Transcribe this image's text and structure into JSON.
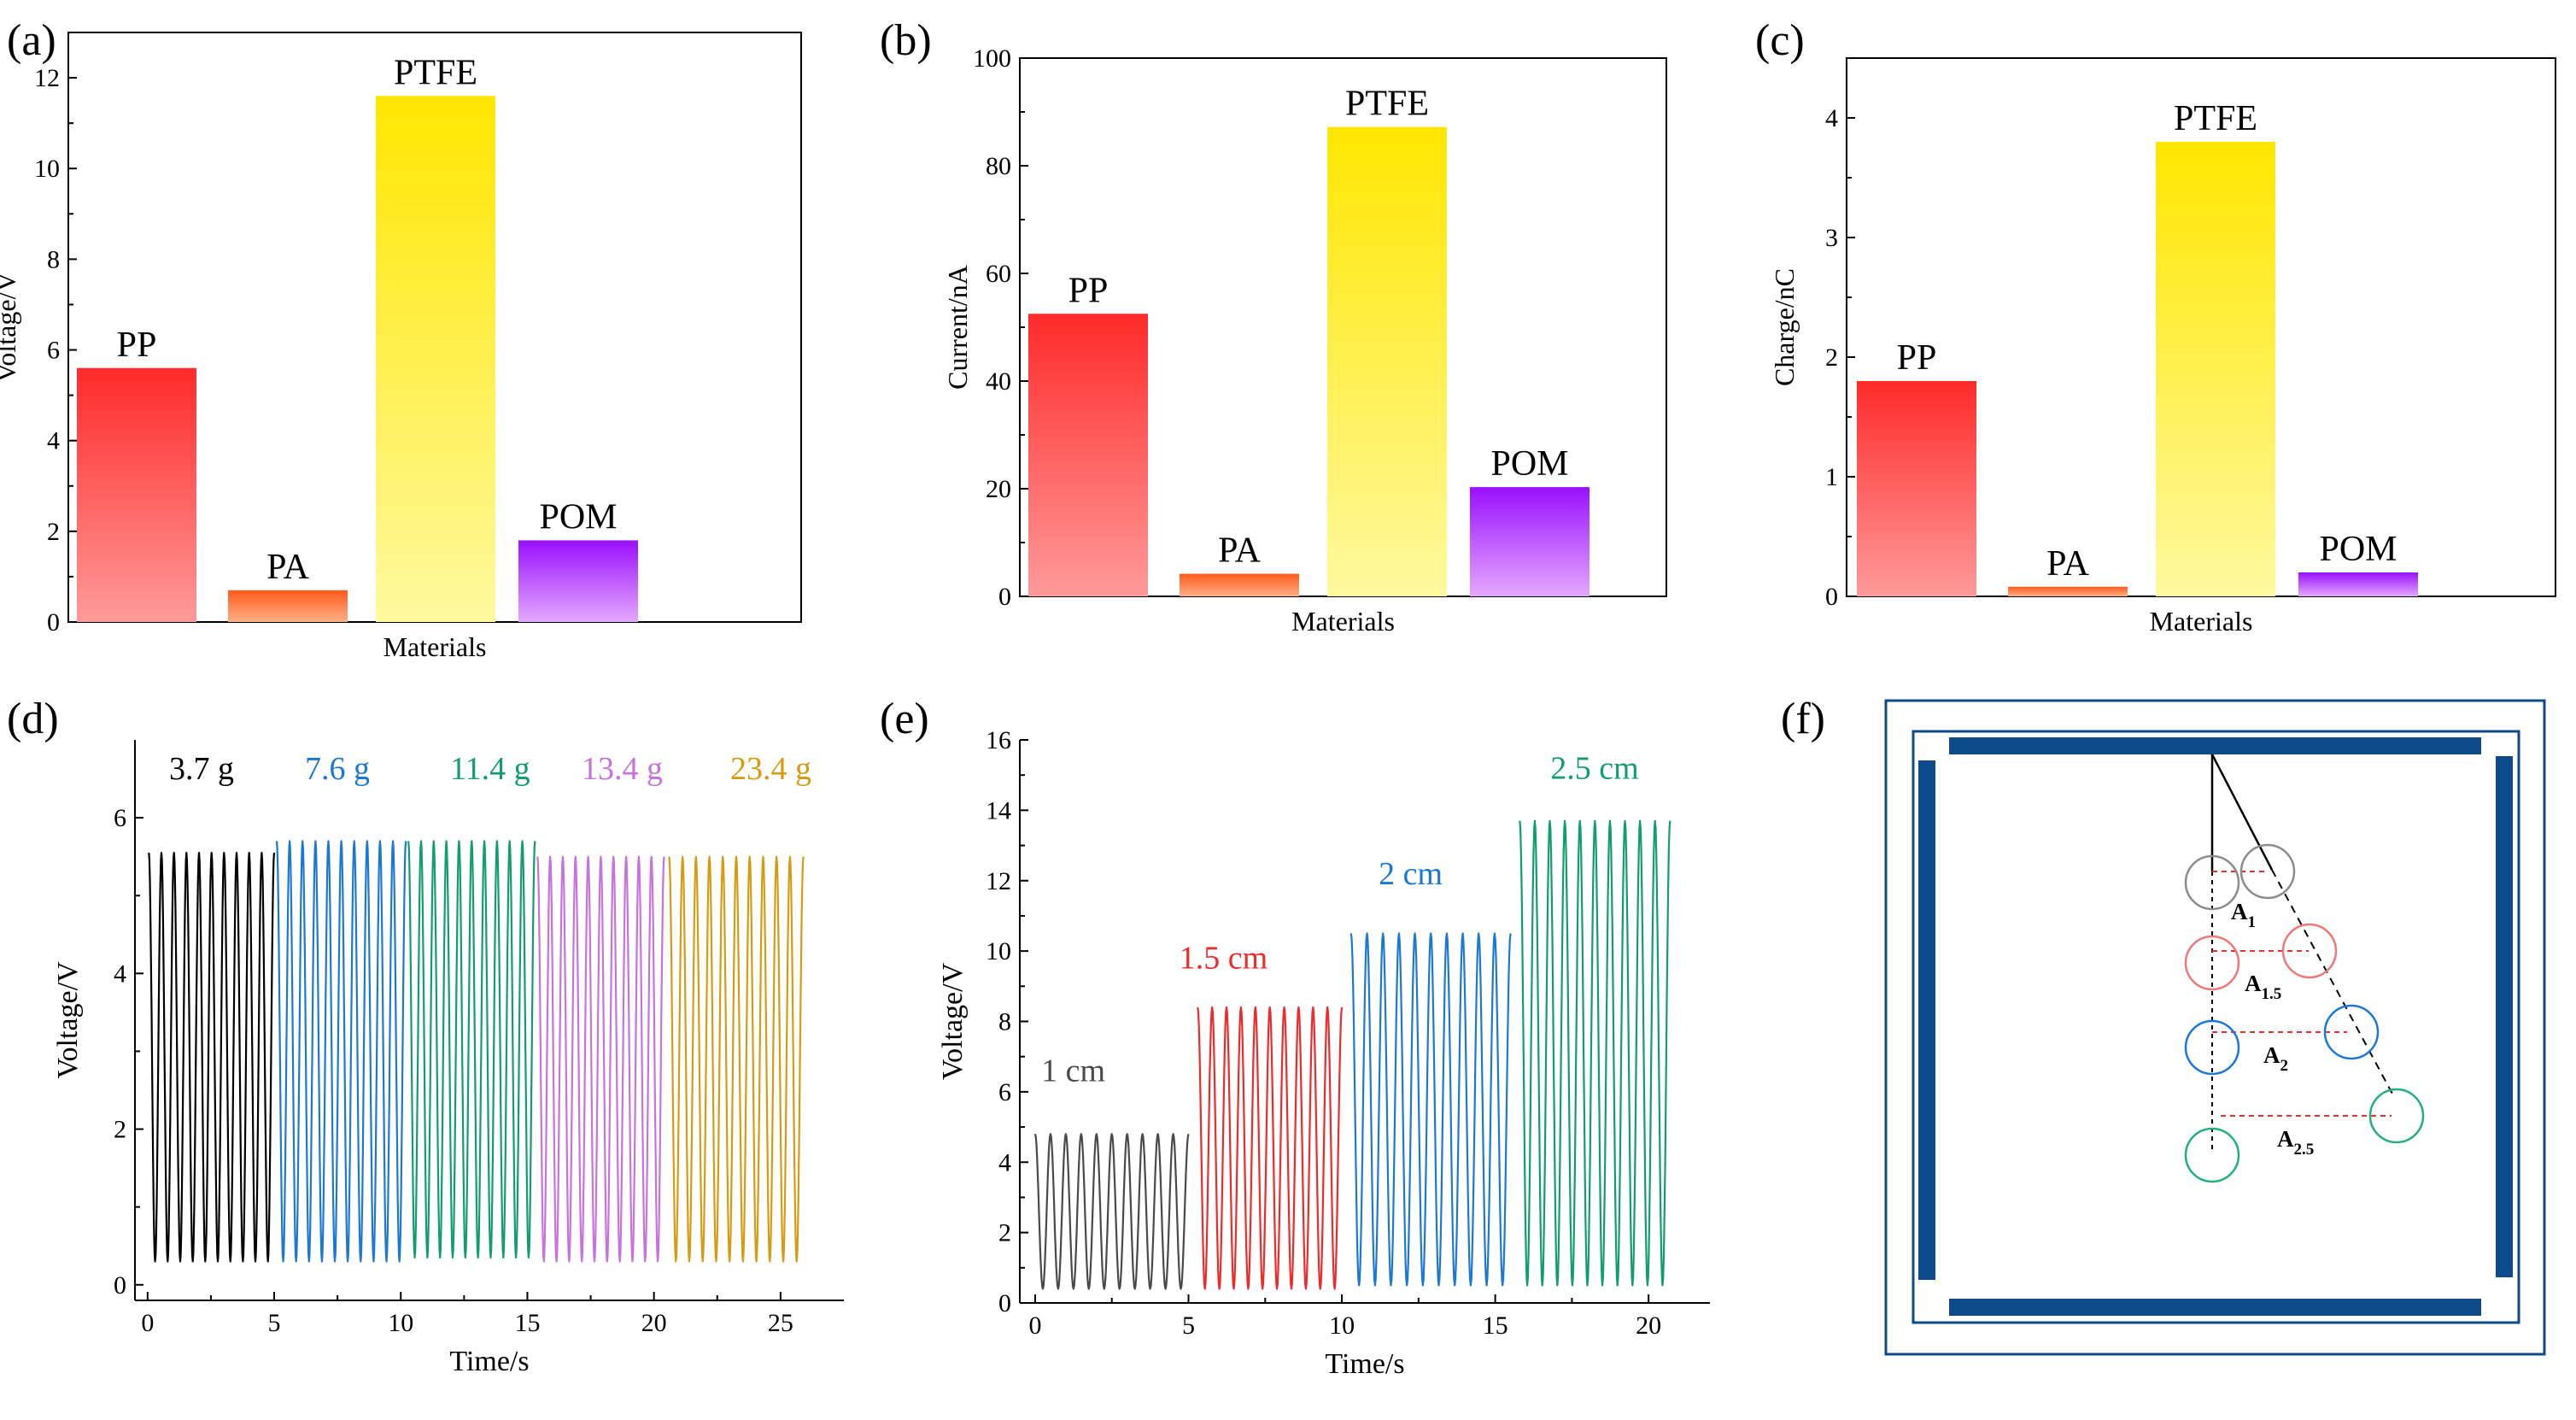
{
  "figure": {
    "panels": [
      "(a)",
      "(b)",
      "(c)",
      "(d)",
      "(e)",
      "(f)"
    ]
  },
  "chart_data": [
    {
      "id": "a",
      "type": "bar",
      "panel_label": "(a)",
      "xlabel": "Materials",
      "ylabel": "Voltage/V",
      "ylim": [
        0,
        13
      ],
      "yticks": [
        0,
        2,
        4,
        6,
        8,
        10,
        12
      ],
      "categories": [
        "PP",
        "PA",
        "PTFE",
        "POM"
      ],
      "values": [
        5.6,
        0.7,
        11.6,
        1.8
      ],
      "colors": [
        [
          "#ff2a2a",
          "#ff9a9a"
        ],
        [
          "#ff5a1a",
          "#ffb088"
        ],
        [
          "#ffe600",
          "#fff9a0"
        ],
        [
          "#9a10ff",
          "#e4a8ff"
        ]
      ]
    },
    {
      "id": "b",
      "type": "bar",
      "panel_label": "(b)",
      "xlabel": "Materials",
      "ylabel": "Current/nA",
      "ylim": [
        0,
        100
      ],
      "yticks": [
        0,
        20,
        40,
        60,
        80,
        100
      ],
      "categories": [
        "PP",
        "PA",
        "PTFE",
        "POM"
      ],
      "values": [
        52.5,
        4.2,
        87.2,
        20.3
      ],
      "colors": [
        [
          "#ff2a2a",
          "#ff9a9a"
        ],
        [
          "#ff5a1a",
          "#ffb088"
        ],
        [
          "#ffe600",
          "#fff9a0"
        ],
        [
          "#9a10ff",
          "#e4a8ff"
        ]
      ]
    },
    {
      "id": "c",
      "type": "bar",
      "panel_label": "(c)",
      "xlabel": "Materials",
      "ylabel": "Charge/nC",
      "ylim": [
        0,
        4.5
      ],
      "yticks": [
        0,
        1,
        2,
        3,
        4
      ],
      "categories": [
        "PP",
        "PA",
        "PTFE",
        "POM"
      ],
      "values": [
        1.8,
        0.08,
        3.8,
        0.2
      ],
      "colors": [
        [
          "#ff2a2a",
          "#ff9a9a"
        ],
        [
          "#ff5a1a",
          "#ffb088"
        ],
        [
          "#ffe600",
          "#fff9a0"
        ],
        [
          "#9a10ff",
          "#e4a8ff"
        ]
      ]
    },
    {
      "id": "d",
      "type": "line",
      "panel_label": "(d)",
      "xlabel": "Time/s",
      "ylabel": "Voltage/V",
      "xlim": [
        -0.5,
        27.5
      ],
      "xticks": [
        0,
        5,
        10,
        15,
        20,
        25
      ],
      "ylim": [
        -0.2,
        7
      ],
      "yticks": [
        0,
        2,
        4,
        6
      ],
      "cycles_per_segment": 10,
      "series": [
        {
          "name": "3.7 g",
          "color": "#000000",
          "t_start": 0.05,
          "t_end": 5.0,
          "low": 0.3,
          "high": 5.55
        },
        {
          "name": "7.6 g",
          "color": "#1b78d6",
          "t_start": 5.1,
          "t_end": 10.2,
          "low": 0.3,
          "high": 5.7
        },
        {
          "name": "11.4 g",
          "color": "#119e6c",
          "t_start": 10.3,
          "t_end": 15.3,
          "low": 0.35,
          "high": 5.7
        },
        {
          "name": "13.4 g",
          "color": "#c872e0",
          "t_start": 15.4,
          "t_end": 20.4,
          "low": 0.3,
          "high": 5.5
        },
        {
          "name": "23.4 g",
          "color": "#d79b12",
          "t_start": 20.6,
          "t_end": 25.9,
          "low": 0.3,
          "high": 5.5
        }
      ]
    },
    {
      "id": "e",
      "type": "line",
      "panel_label": "(e)",
      "xlabel": "Time/s",
      "ylabel": "Voltage/V",
      "xlim": [
        -0.5,
        22
      ],
      "xticks": [
        0,
        5,
        10,
        15,
        20
      ],
      "ylim": [
        0,
        16
      ],
      "yticks": [
        0,
        2,
        4,
        6,
        8,
        10,
        12,
        14,
        16
      ],
      "cycles_per_segment": 10,
      "series": [
        {
          "name": "1 cm",
          "color": "#4a4a4a",
          "t_start": 0.0,
          "t_end": 5.0,
          "low": 0.4,
          "high": 4.8
        },
        {
          "name": "1.5 cm",
          "color": "#ee2a2a",
          "t_start": 5.3,
          "t_end": 10.0,
          "low": 0.4,
          "high": 8.4
        },
        {
          "name": "2 cm",
          "color": "#1b78d6",
          "t_start": 10.3,
          "t_end": 15.5,
          "low": 0.5,
          "high": 10.5
        },
        {
          "name": "2.5 cm",
          "color": "#119e6c",
          "t_start": 15.8,
          "t_end": 20.7,
          "low": 0.5,
          "high": 13.7
        }
      ]
    }
  ],
  "diagram_f": {
    "panel_label": "(f)",
    "frame_color": "#0d4a8a",
    "labels": [
      {
        "main": "A",
        "sub": "1",
        "color": "#8c8c8c"
      },
      {
        "main": "A",
        "sub": "1.5",
        "color": "#f07878"
      },
      {
        "main": "A",
        "sub": "2",
        "color": "#1b78d6"
      },
      {
        "main": "A",
        "sub": "2.5",
        "color": "#22b07a"
      }
    ],
    "ball_colors": [
      "#8c8c8c",
      "#f07878",
      "#1b78d6",
      "#22b07a"
    ]
  }
}
